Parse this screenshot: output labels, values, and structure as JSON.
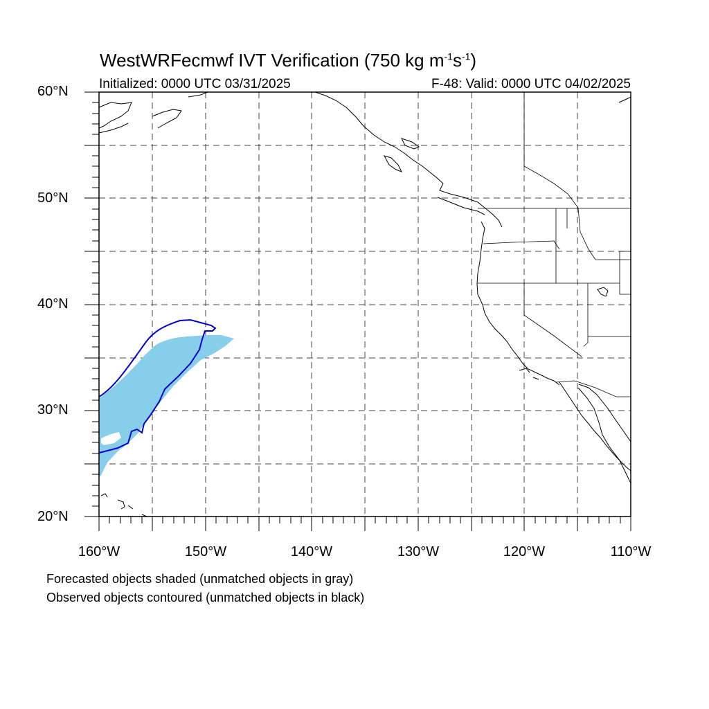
{
  "title": {
    "main": "WestWRFecmwf IVT Verification (750 kg m",
    "exp1": "-1",
    "mid": "s",
    "exp2": "-1",
    "end": ")"
  },
  "subtitle_left": "Initialized: 0000 UTC 03/31/2025",
  "subtitle_right": "F-48: Valid: 0000 UTC 04/02/2025",
  "lat_labels": [
    "60°N",
    "50°N",
    "40°N",
    "30°N",
    "20°N"
  ],
  "lon_labels": [
    "160°W",
    "150°W",
    "140°W",
    "130°W",
    "120°W",
    "110°W"
  ],
  "notes": [
    "Forecasted objects shaded (unmatched objects in gray)",
    "Observed objects contoured (unmatched objects in black)"
  ],
  "colors": {
    "forecast_fill": "#87ceeb",
    "observed_contour": "#0000cc"
  }
}
